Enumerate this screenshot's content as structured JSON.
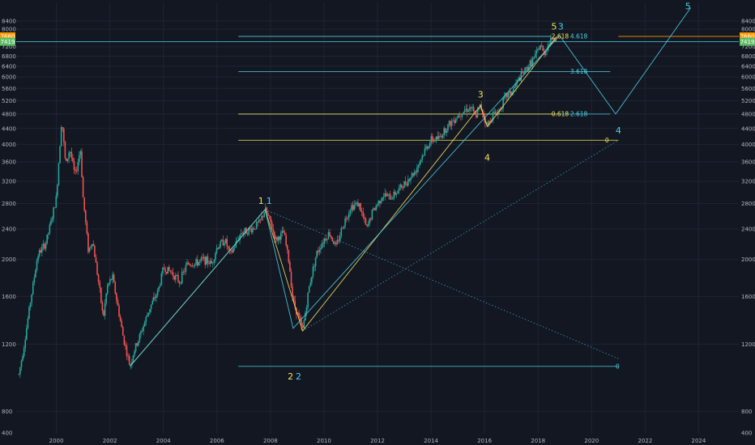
{
  "chart_data": {
    "type": "line",
    "y_scale": "log",
    "ylim": [
      700,
      9400
    ],
    "xlim": [
      1998.5,
      2025.5
    ],
    "colors": {
      "background": "#131722",
      "grid": "#1f2433",
      "price_line": "#a3a7b3",
      "bull": "#26a69a",
      "bear": "#ef5350",
      "yellow": "#f2e35a",
      "cyan": "#4dd0e1",
      "teal_line": "#26b5a8",
      "orange": "#ff9800",
      "green_badge": "#5dbb63"
    },
    "x_ticks": [
      {
        "x": 2000,
        "label": "2000"
      },
      {
        "x": 2002,
        "label": "2002"
      },
      {
        "x": 2004,
        "label": "2004"
      },
      {
        "x": 2006,
        "label": "2006"
      },
      {
        "x": 2008,
        "label": "2008"
      },
      {
        "x": 2010,
        "label": "2010"
      },
      {
        "x": 2012,
        "label": "2012"
      },
      {
        "x": 2014,
        "label": "2014"
      },
      {
        "x": 2016,
        "label": "2016"
      },
      {
        "x": 2018,
        "label": "2018"
      },
      {
        "x": 2020,
        "label": "2020"
      },
      {
        "x": 2022,
        "label": "2022"
      },
      {
        "x": 2024,
        "label": "2024"
      }
    ],
    "y_ticks": [
      {
        "v": 8400,
        "label": "8400"
      },
      {
        "v": 8000,
        "label": "8000"
      },
      {
        "v": 7200,
        "label": "7200"
      },
      {
        "v": 6800,
        "label": "6800"
      },
      {
        "v": 6400,
        "label": "6400"
      },
      {
        "v": 6000,
        "label": "6000"
      },
      {
        "v": 5600,
        "label": "5600"
      },
      {
        "v": 5200,
        "label": "5200"
      },
      {
        "v": 4800,
        "label": "4800"
      },
      {
        "v": 4400,
        "label": "4400"
      },
      {
        "v": 4000,
        "label": "4000"
      },
      {
        "v": 3600,
        "label": "3600"
      },
      {
        "v": 3200,
        "label": "3200"
      },
      {
        "v": 2800,
        "label": "2800"
      },
      {
        "v": 2400,
        "label": "2400"
      },
      {
        "v": 2000,
        "label": "2000"
      },
      {
        "v": 1600,
        "label": "1600"
      },
      {
        "v": 1200,
        "label": "1200"
      },
      {
        "v": 800,
        "label": "800"
      },
      {
        "v": 400,
        "label": "400"
      }
    ],
    "price_badges": [
      {
        "v": 7660,
        "label": "7660",
        "color": "#ff9800"
      },
      {
        "v": 7419,
        "label": "7419",
        "color": "#5dbb63"
      }
    ],
    "price_series": [
      [
        1998.6,
        1000
      ],
      [
        1998.8,
        1200
      ],
      [
        1999.0,
        1500
      ],
      [
        1999.3,
        2050
      ],
      [
        1999.6,
        2200
      ],
      [
        1999.8,
        2500
      ],
      [
        2000.0,
        2900
      ],
      [
        2000.2,
        4700
      ],
      [
        2000.35,
        3500
      ],
      [
        2000.5,
        3900
      ],
      [
        2000.7,
        3300
      ],
      [
        2000.9,
        3900
      ],
      [
        2001.0,
        2900
      ],
      [
        2001.2,
        2100
      ],
      [
        2001.35,
        2250
      ],
      [
        2001.6,
        1700
      ],
      [
        2001.75,
        1400
      ],
      [
        2001.9,
        1700
      ],
      [
        2002.1,
        1800
      ],
      [
        2002.3,
        1500
      ],
      [
        2002.5,
        1250
      ],
      [
        2002.75,
        1050
      ],
      [
        2002.9,
        1150
      ],
      [
        2003.1,
        1250
      ],
      [
        2003.5,
        1500
      ],
      [
        2003.8,
        1650
      ],
      [
        2004.0,
        1900
      ],
      [
        2004.3,
        1850
      ],
      [
        2004.6,
        1750
      ],
      [
        2004.9,
        1950
      ],
      [
        2005.2,
        1950
      ],
      [
        2005.5,
        2000
      ],
      [
        2005.8,
        1950
      ],
      [
        2006.0,
        2150
      ],
      [
        2006.3,
        2250
      ],
      [
        2006.5,
        2050
      ],
      [
        2006.9,
        2350
      ],
      [
        2007.3,
        2400
      ],
      [
        2007.6,
        2500
      ],
      [
        2007.8,
        2700
      ],
      [
        2008.0,
        2500
      ],
      [
        2008.2,
        2250
      ],
      [
        2008.5,
        2350
      ],
      [
        2008.7,
        1950
      ],
      [
        2008.85,
        1550
      ],
      [
        2009.0,
        1450
      ],
      [
        2009.2,
        1300
      ],
      [
        2009.45,
        1700
      ],
      [
        2009.7,
        2050
      ],
      [
        2009.9,
        2200
      ],
      [
        2010.2,
        2350
      ],
      [
        2010.45,
        2150
      ],
      [
        2010.7,
        2450
      ],
      [
        2011.0,
        2750
      ],
      [
        2011.3,
        2800
      ],
      [
        2011.6,
        2400
      ],
      [
        2011.8,
        2650
      ],
      [
        2012.2,
        2950
      ],
      [
        2012.5,
        2900
      ],
      [
        2012.8,
        3050
      ],
      [
        2013.0,
        3150
      ],
      [
        2013.4,
        3400
      ],
      [
        2013.8,
        3900
      ],
      [
        2014.0,
        4100
      ],
      [
        2014.3,
        4150
      ],
      [
        2014.6,
        4450
      ],
      [
        2014.85,
        4650
      ],
      [
        2015.2,
        4900
      ],
      [
        2015.5,
        5000
      ],
      [
        2015.65,
        4700
      ],
      [
        2015.85,
        5050
      ],
      [
        2016.1,
        4450
      ],
      [
        2016.3,
        4800
      ],
      [
        2016.5,
        4850
      ],
      [
        2016.8,
        5350
      ],
      [
        2017.0,
        5450
      ],
      [
        2017.3,
        5950
      ],
      [
        2017.6,
        6350
      ],
      [
        2017.9,
        6800
      ],
      [
        2018.1,
        7300
      ],
      [
        2018.2,
        6900
      ],
      [
        2018.4,
        7350
      ],
      [
        2018.6,
        7700
      ],
      [
        2018.7,
        7419
      ]
    ],
    "wave_lines": [
      {
        "color": "#f2e35a",
        "points": [
          [
            2002.75,
            1050
          ],
          [
            2007.8,
            2700
          ],
          [
            2009.2,
            1300
          ],
          [
            2015.85,
            5050
          ],
          [
            2016.1,
            4450
          ],
          [
            2018.7,
            7660
          ]
        ]
      },
      {
        "color": "#4dd0e1",
        "points": [
          [
            2002.75,
            1050
          ],
          [
            2007.8,
            2700
          ],
          [
            2008.85,
            1320
          ],
          [
            2018.8,
            7700
          ],
          [
            2020.9,
            4800
          ],
          [
            2023.7,
            9100
          ]
        ]
      }
    ],
    "dotted_lines": [
      {
        "color": "#4dd0e1",
        "points": [
          [
            2007.8,
            2700
          ],
          [
            2021.0,
            1100
          ]
        ]
      },
      {
        "color": "#4dd0e1",
        "points": [
          [
            2009.2,
            1300
          ],
          [
            2021.0,
            4100
          ]
        ]
      }
    ],
    "hlines": [
      {
        "v": 7660,
        "x1": 2006.8,
        "x2": 2018.5,
        "color": "#4dd0e1"
      },
      {
        "v": 7660,
        "x1": 2021.0,
        "x2": 2025.5,
        "color": "#ff9800"
      },
      {
        "v": 7419,
        "x1": 1998.5,
        "x2": 2025.5,
        "color": "#4dd0e1"
      },
      {
        "v": 6200,
        "x1": 2006.8,
        "x2": 2020.7,
        "color": "#4dd0e1"
      },
      {
        "v": 4800,
        "x1": 2006.8,
        "x2": 2020.7,
        "color": "#4dd0e1"
      },
      {
        "v": 4800,
        "x1": 2006.8,
        "x2": 2018.7,
        "color": "#f2e35a"
      },
      {
        "v": 4100,
        "x1": 2006.8,
        "x2": 2021.0,
        "color": "#f2e35a"
      },
      {
        "v": 1050,
        "x1": 2006.8,
        "x2": 2021.0,
        "color": "#4dd0e1"
      }
    ],
    "fib_labels": [
      {
        "x": 2018.5,
        "v": 7660,
        "text": "2.618",
        "color": "#f2e35a"
      },
      {
        "x": 2019.2,
        "v": 7660,
        "text": "4.618",
        "color": "#4dd0e1"
      },
      {
        "x": 2019.2,
        "v": 6200,
        "text": "3.618",
        "color": "#4dd0e1"
      },
      {
        "x": 2018.5,
        "v": 4800,
        "text": "0.618",
        "color": "#f2e35a"
      },
      {
        "x": 2019.2,
        "v": 4800,
        "text": "2.618",
        "color": "#4dd0e1"
      },
      {
        "x": 2020.5,
        "v": 4100,
        "text": "0",
        "color": "#f2e35a"
      },
      {
        "x": 2020.9,
        "v": 1050,
        "text": "0",
        "color": "#4dd0e1"
      }
    ],
    "wave_labels": [
      {
        "x": 2007.65,
        "v": 2850,
        "text": "1",
        "color": "#f2e35a"
      },
      {
        "x": 2007.95,
        "v": 2850,
        "text": "1",
        "color": "#4dd0e1"
      },
      {
        "x": 2008.75,
        "v": 990,
        "text": "2",
        "color": "#f2e35a"
      },
      {
        "x": 2009.05,
        "v": 990,
        "text": "2",
        "color": "#4dd0e1"
      },
      {
        "x": 2015.85,
        "v": 5400,
        "text": "3",
        "color": "#f2e35a"
      },
      {
        "x": 2016.1,
        "v": 3700,
        "text": "4",
        "color": "#f2e35a"
      },
      {
        "x": 2018.6,
        "v": 8150,
        "text": "5",
        "color": "#f2e35a"
      },
      {
        "x": 2018.85,
        "v": 8150,
        "text": "3",
        "color": "#4dd0e1"
      },
      {
        "x": 2021.0,
        "v": 4350,
        "text": "4",
        "color": "#4dd0e1"
      },
      {
        "x": 2023.6,
        "v": 9200,
        "text": "5",
        "color": "#4dd0e1"
      }
    ]
  }
}
